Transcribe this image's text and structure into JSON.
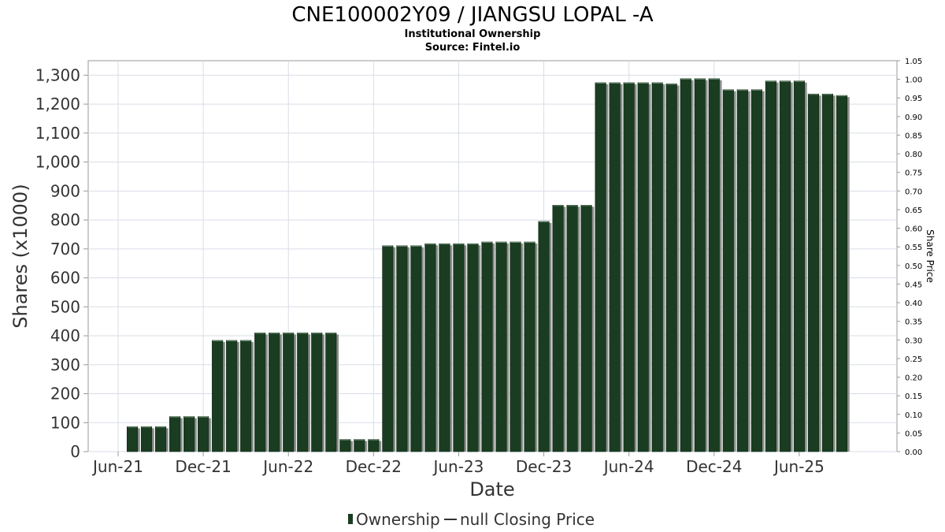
{
  "chart_data": {
    "type": "bar",
    "title": "CNE100002Y09 / JIANGSU LOPAL -A",
    "subtitle": "Institutional Ownership",
    "source": "Source: Fintel.io",
    "xlabel": "Date",
    "ylabel": "Shares (x1000)",
    "y2label": "Share Price",
    "ylim": [
      0,
      1350
    ],
    "y2lim": [
      0,
      1.05
    ],
    "grid": true,
    "x_start": "2021-06",
    "x_end": "2025-11",
    "x_ticks": [
      "Jun-21",
      "Dec-21",
      "Jun-22",
      "Dec-22",
      "Jun-23",
      "Dec-23",
      "Jun-24",
      "Dec-24",
      "Jun-25"
    ],
    "y_ticks": [
      "0",
      "100",
      "200",
      "300",
      "400",
      "500",
      "600",
      "700",
      "800",
      "900",
      "1,000",
      "1,100",
      "1,200",
      "1,300"
    ],
    "y2_ticks": [
      "0.00",
      "0.05",
      "0.10",
      "0.15",
      "0.20",
      "0.25",
      "0.30",
      "0.35",
      "0.40",
      "0.45",
      "0.50",
      "0.55",
      "0.60",
      "0.65",
      "0.70",
      "0.75",
      "0.80",
      "0.85",
      "0.90",
      "0.95",
      "1.00",
      "1.05"
    ],
    "legend": [
      {
        "label": "Ownership",
        "marker": "bar",
        "color": "#1a3d22"
      },
      {
        "label": "null Closing Price",
        "marker": "line",
        "color": "#333333"
      }
    ],
    "legend_position": "bottom",
    "series": [
      {
        "name": "Ownership",
        "color": "#1a3d22",
        "x": [
          "2021-07",
          "2021-08",
          "2021-09",
          "2021-10",
          "2021-11",
          "2021-12",
          "2022-01",
          "2022-02",
          "2022-03",
          "2022-04",
          "2022-05",
          "2022-06",
          "2022-07",
          "2022-08",
          "2022-09",
          "2022-10",
          "2022-11",
          "2022-12",
          "2023-01",
          "2023-02",
          "2023-03",
          "2023-04",
          "2023-05",
          "2023-06",
          "2023-07",
          "2023-08",
          "2023-09",
          "2023-10",
          "2023-11",
          "2023-12",
          "2024-01",
          "2024-02",
          "2024-03",
          "2024-04",
          "2024-05",
          "2024-06",
          "2024-07",
          "2024-08",
          "2024-09",
          "2024-10",
          "2024-11",
          "2024-12",
          "2025-01",
          "2025-02",
          "2025-03",
          "2025-04",
          "2025-05",
          "2025-06",
          "2025-07",
          "2025-08",
          "2025-09"
        ],
        "values": [
          86,
          86,
          86,
          121,
          121,
          121,
          384,
          384,
          384,
          410,
          410,
          410,
          410,
          410,
          410,
          42,
          42,
          42,
          711,
          711,
          711,
          718,
          718,
          718,
          718,
          724,
          724,
          724,
          724,
          795,
          851,
          851,
          851,
          1274,
          1274,
          1274,
          1274,
          1274,
          1270,
          1288,
          1288,
          1288,
          1250,
          1250,
          1250,
          1280,
          1280,
          1280,
          1235,
          1235,
          1230
        ]
      }
    ]
  }
}
